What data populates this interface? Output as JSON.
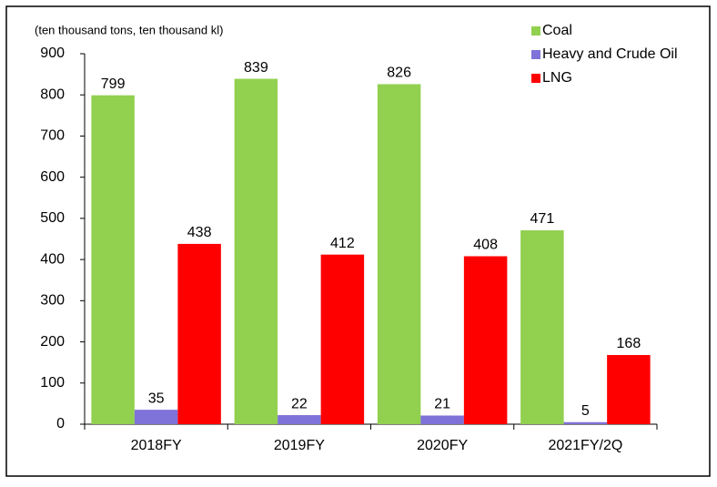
{
  "chart_data": {
    "type": "bar",
    "y_axis_label": "(ten thousand tons, ten thousand kl)",
    "categories": [
      "2018FY",
      "2019FY",
      "2020FY",
      "2021FY/2Q"
    ],
    "series": [
      {
        "name": "Coal",
        "color": "#92d050",
        "values": [
          799,
          839,
          826,
          471
        ]
      },
      {
        "name": "Heavy and Crude Oil",
        "color": "#7f72d8",
        "values": [
          35,
          22,
          21,
          5
        ]
      },
      {
        "name": "LNG",
        "color": "#ff0000",
        "values": [
          438,
          412,
          408,
          168
        ]
      }
    ],
    "ylim": [
      0,
      900
    ],
    "yticks": [
      0,
      100,
      200,
      300,
      400,
      500,
      600,
      700,
      800,
      900
    ],
    "legend": "top-right",
    "grid": false
  }
}
